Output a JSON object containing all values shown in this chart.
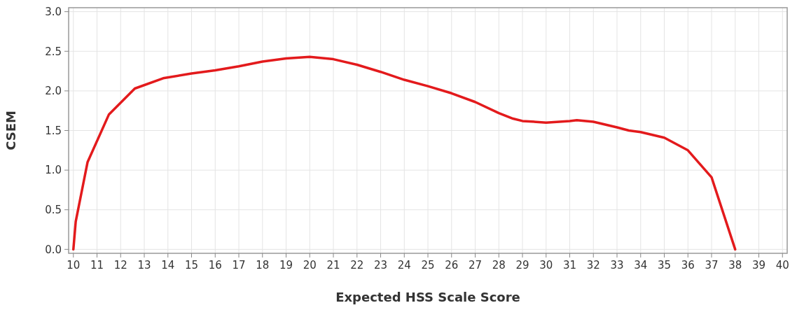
{
  "chart_data": {
    "type": "line",
    "xlabel": "Expected HSS Scale Score",
    "ylabel": "CSEM",
    "x": [
      10,
      10.1,
      10.6,
      11.5,
      12.6,
      13.8,
      15,
      16,
      17,
      18,
      19,
      20,
      21,
      22,
      23,
      24,
      25,
      26,
      27,
      28,
      28.6,
      29,
      30,
      31,
      31.3,
      32,
      33,
      33.5,
      34,
      35,
      36,
      37,
      38
    ],
    "series": [
      {
        "color": "#e31a1c",
        "values": [
          0,
          0.35,
          1.1,
          1.7,
          2.03,
          2.16,
          2.22,
          2.26,
          2.31,
          2.37,
          2.41,
          2.43,
          2.4,
          2.33,
          2.24,
          2.14,
          2.06,
          1.97,
          1.86,
          1.72,
          1.65,
          1.62,
          1.6,
          1.62,
          1.63,
          1.61,
          1.54,
          1.5,
          1.48,
          1.41,
          1.25,
          0.91,
          0
        ]
      }
    ],
    "xlim": [
      9.8,
      40.2
    ],
    "ylim": [
      -0.05,
      3.05
    ],
    "xticks": [
      10,
      11,
      12,
      13,
      14,
      15,
      16,
      17,
      18,
      19,
      20,
      21,
      22,
      23,
      24,
      25,
      26,
      27,
      28,
      29,
      30,
      31,
      32,
      33,
      34,
      35,
      36,
      37,
      38,
      39,
      40
    ],
    "yticks": [
      {
        "value": 0,
        "label": "0.0"
      },
      {
        "value": 0.5,
        "label": "0.5"
      },
      {
        "value": 1,
        "label": "1.0"
      },
      {
        "value": 1.5,
        "label": "1.5"
      },
      {
        "value": 2,
        "label": "2.0"
      },
      {
        "value": 2.5,
        "label": "2.5"
      },
      {
        "value": 3,
        "label": "3.0"
      }
    ],
    "grid": true,
    "marker": "none",
    "line_style": "solid"
  }
}
